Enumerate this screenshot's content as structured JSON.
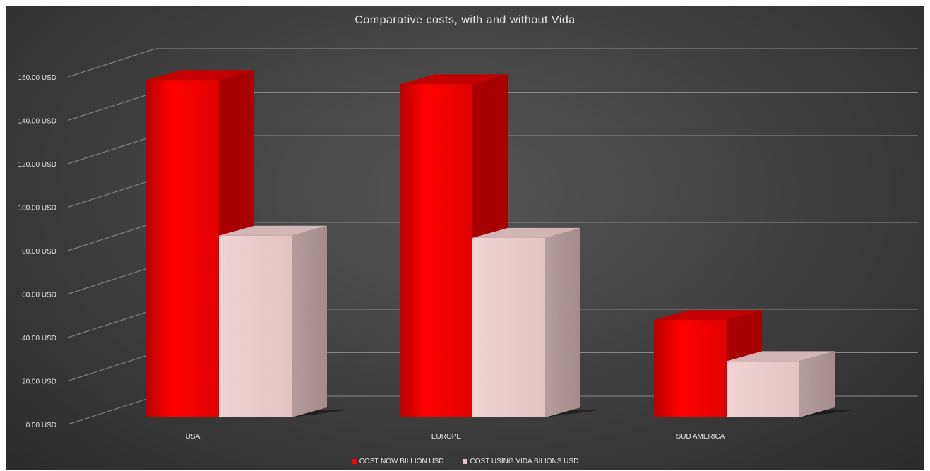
{
  "chart_data": {
    "type": "bar",
    "title": "Comparative costs, with and without Vida",
    "categories": [
      "USA",
      "EUROPE",
      "SUD AMERICA"
    ],
    "series": [
      {
        "name": "COST NOW BILLION USD",
        "values": [
          156,
          154,
          45
        ],
        "color": "#ff0000"
      },
      {
        "name": "COST USING VIDA BILIONS USD",
        "values": [
          84,
          83,
          26
        ],
        "color": "#e8c4c4"
      }
    ],
    "yticks": [
      "0.00 USD",
      "20.00 USD",
      "40.00 USD",
      "60.00 USD",
      "80.00 USD",
      "100.00 USD",
      "120.00 USD",
      "140.00 USD",
      "160.00 USD"
    ],
    "ylim": [
      0,
      160
    ],
    "grid": true,
    "legend_position": "bottom",
    "style": "3d-column",
    "background": "#3c3c3c"
  }
}
